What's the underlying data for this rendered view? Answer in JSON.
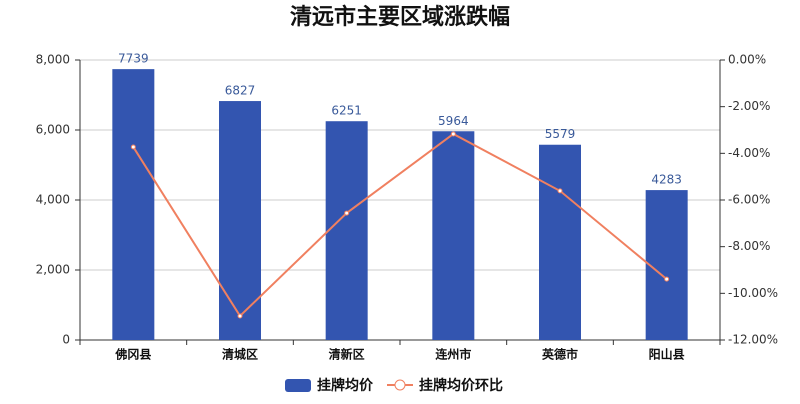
{
  "chart_data": {
    "type": "bar_line",
    "title": "清远市主要区域涨跌幅",
    "categories": [
      "佛冈县",
      "清城区",
      "清新区",
      "连州市",
      "英德市",
      "阳山县"
    ],
    "series": [
      {
        "name": "挂牌均价",
        "type": "bar",
        "color": "#3355b0",
        "values": [
          7739,
          6827,
          6251,
          5964,
          5579,
          4283
        ]
      },
      {
        "name": "挂牌均价环比",
        "type": "line",
        "axis": "y2",
        "color": "#f08060",
        "values": [
          -3.73,
          -10.97,
          -6.56,
          -3.17,
          -5.61,
          -9.39
        ]
      }
    ],
    "ylim": [
      0,
      8000
    ],
    "yticks": [
      0,
      {
        "value": 2000,
        "label": "2,000"
      },
      {
        "value": 4000,
        "label": "4,000"
      },
      {
        "value": 6000,
        "label": "6,000"
      },
      {
        "value": 8000,
        "label": "8,000"
      }
    ],
    "y2lim": [
      -12,
      0
    ],
    "y2ticks": [
      {
        "value": 0,
        "label": "0.00%"
      },
      {
        "value": -2,
        "label": "-2.00%"
      },
      {
        "value": -4,
        "label": "-4.00%"
      },
      {
        "value": -6,
        "label": "-6.00%"
      },
      {
        "value": -8,
        "label": "-8.00%"
      },
      {
        "value": -10,
        "label": "-10.00%"
      },
      {
        "value": -12,
        "label": "-12.00%"
      }
    ],
    "grid": true
  }
}
